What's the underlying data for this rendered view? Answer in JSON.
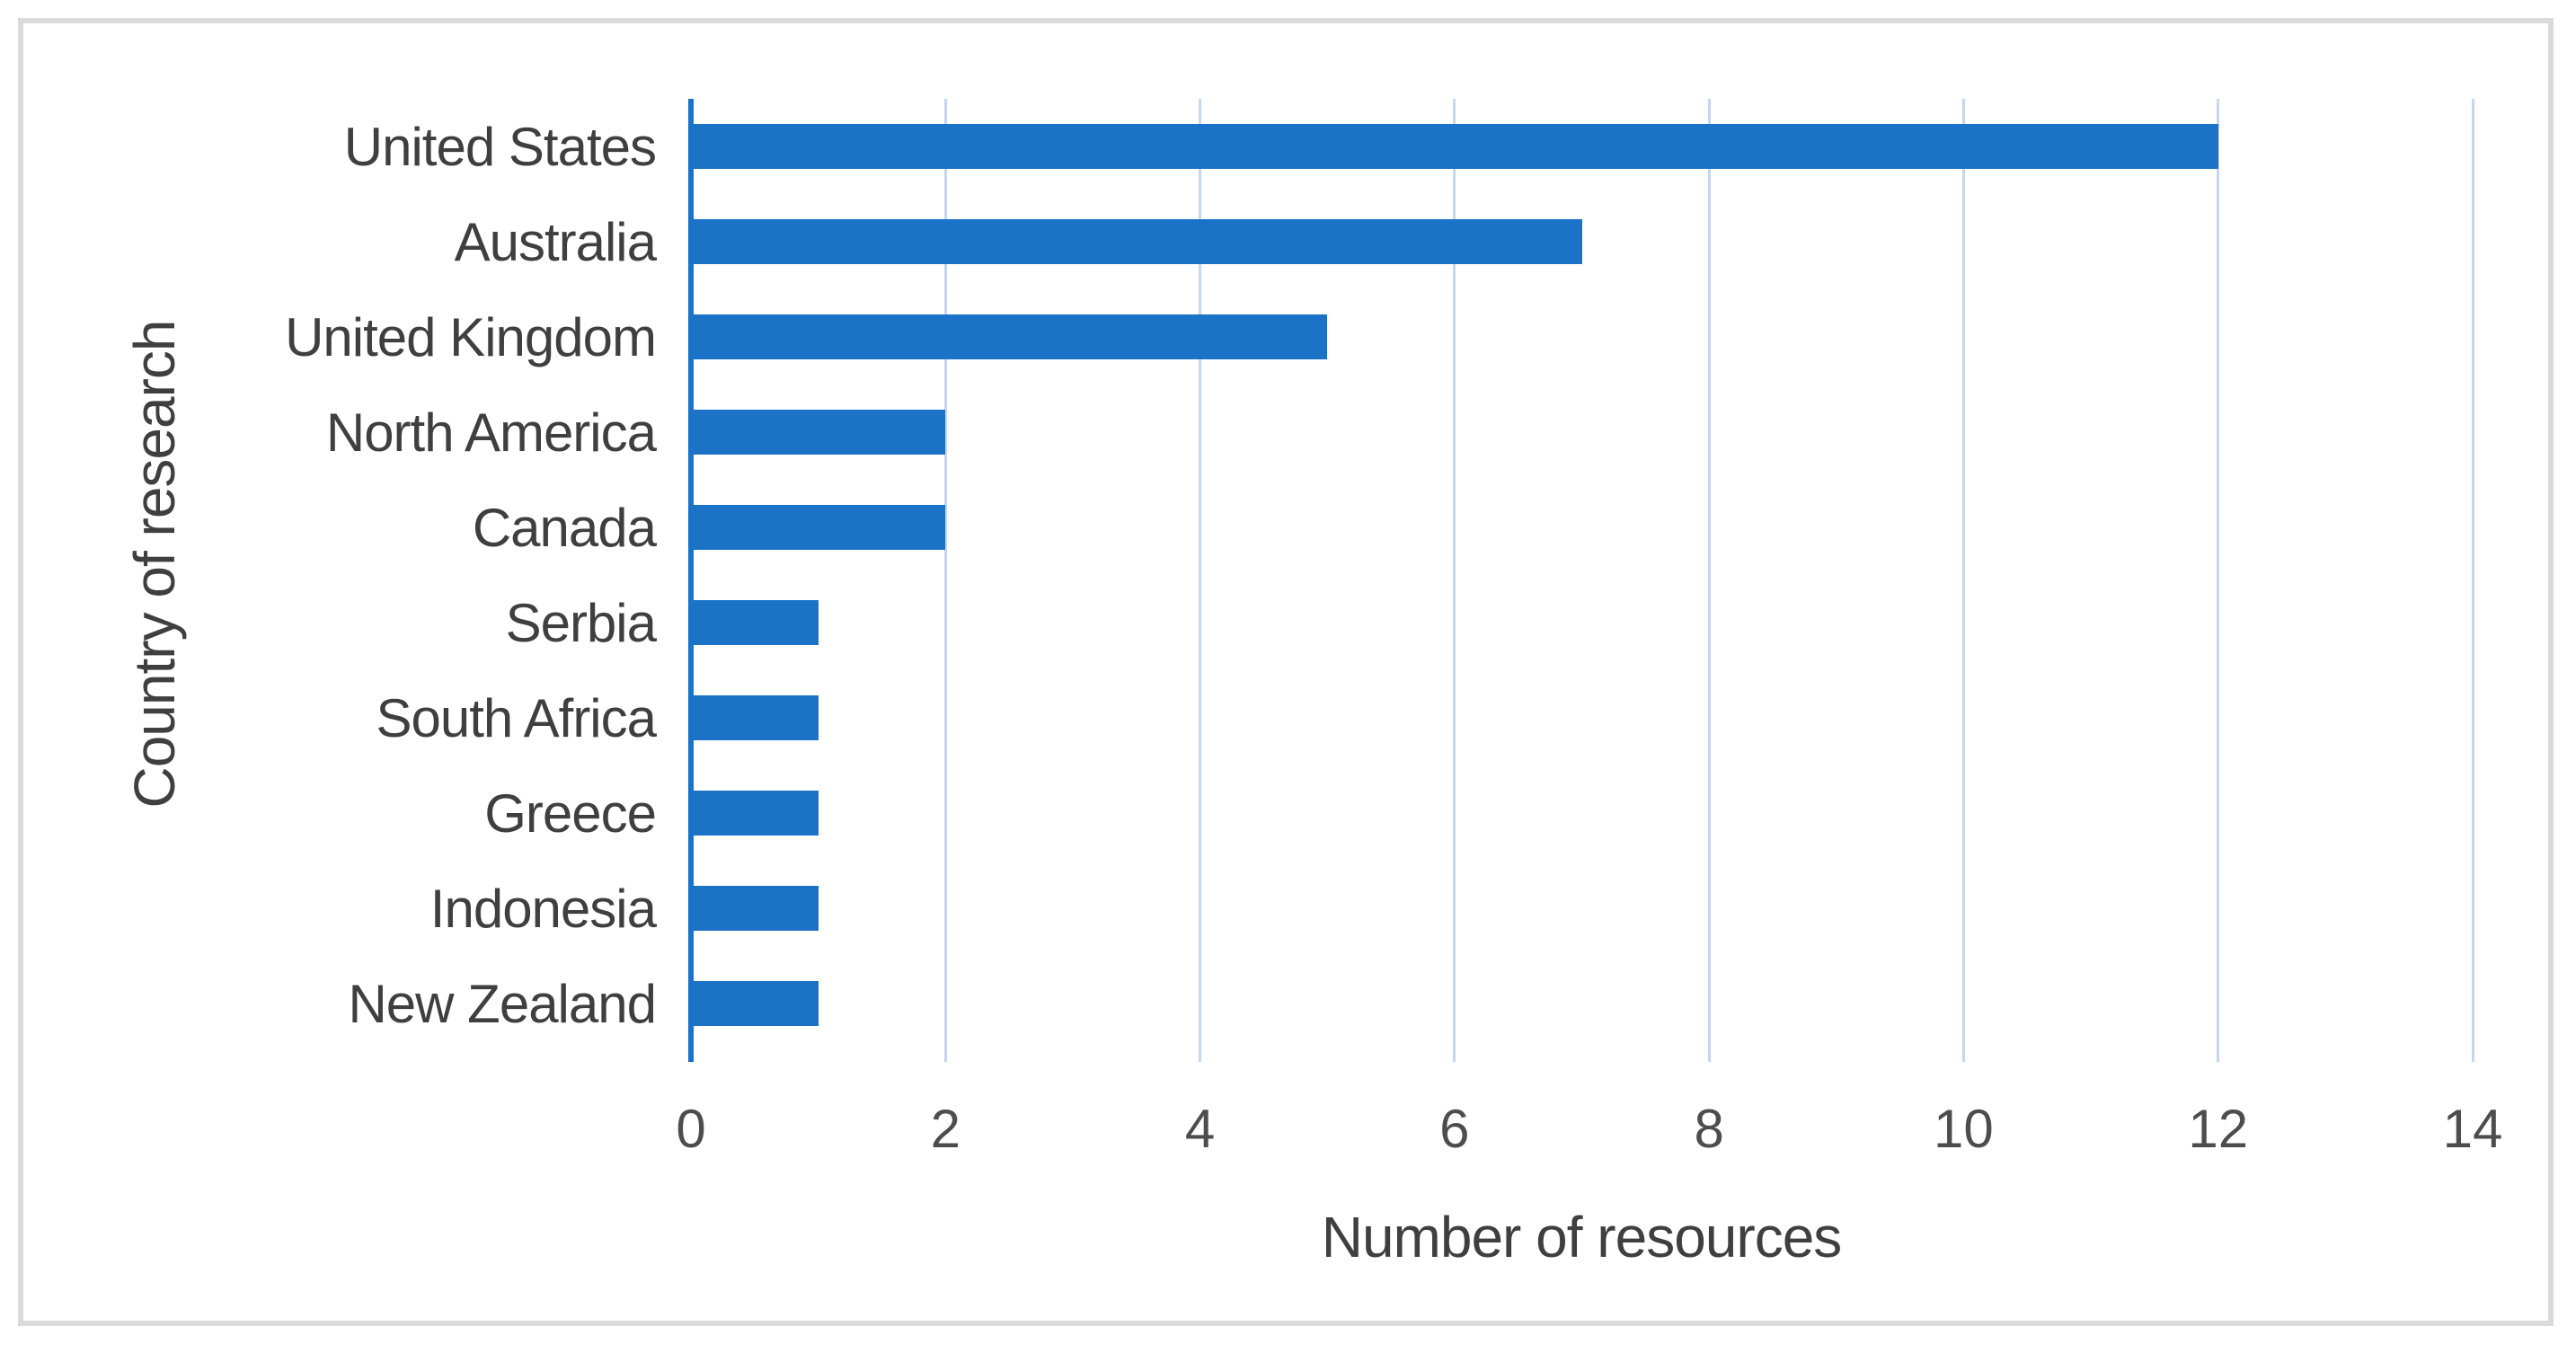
{
  "chart_data": {
    "type": "bar",
    "orientation": "horizontal",
    "categories": [
      "United States",
      "Australia",
      "United Kingdom",
      "North America",
      "Canada",
      "Serbia",
      "South Africa",
      "Greece",
      "Indonesia",
      "New Zealand"
    ],
    "values": [
      12,
      7,
      5,
      2,
      2,
      1,
      1,
      1,
      1,
      1
    ],
    "xlabel": "Number of resources",
    "ylabel": "Country of research",
    "xlim": [
      0,
      14
    ],
    "xticks": [
      0,
      2,
      4,
      6,
      8,
      10,
      12,
      14
    ],
    "grid": true,
    "legend": false,
    "bar_color": "#1b73c8",
    "axis_line_color": "#1b73c8",
    "gridline_color": "#c3d8f0",
    "label_color": "#3f3f3f",
    "tick_color": "#4d4d4d",
    "frame_color": "#dadada"
  }
}
